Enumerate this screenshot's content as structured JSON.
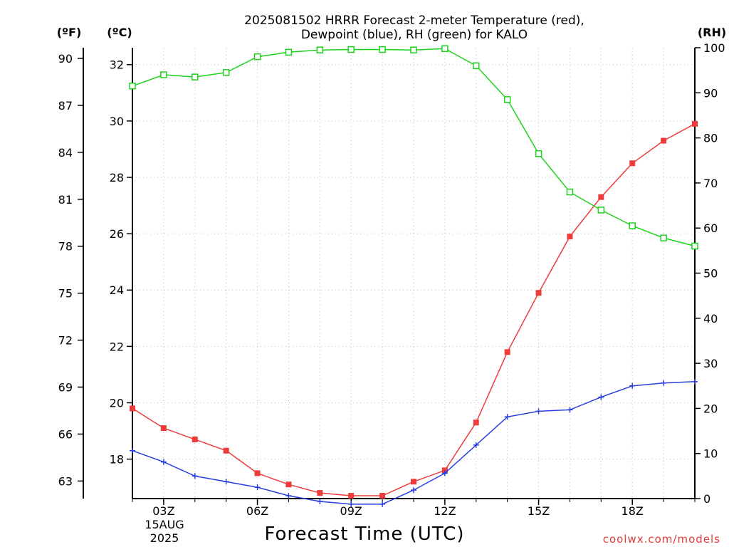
{
  "title_line1": "2025081502 HRRR Forecast 2-meter Temperature (red),",
  "title_line2": "Dewpoint (blue), RH (green) for KALO",
  "credit": "coolwx.com/models",
  "chart_data": {
    "type": "line",
    "xlabel": "Forecast Time (UTC)",
    "x_hours": [
      2,
      3,
      4,
      5,
      6,
      7,
      8,
      9,
      10,
      11,
      12,
      13,
      14,
      15,
      16,
      17,
      18,
      19,
      20
    ],
    "x_range": [
      2,
      20
    ],
    "x_ticks": [
      {
        "hour": 3,
        "label": "03Z"
      },
      {
        "hour": 6,
        "label": "06Z"
      },
      {
        "hour": 9,
        "label": "09Z"
      },
      {
        "hour": 12,
        "label": "12Z"
      },
      {
        "hour": 15,
        "label": "15Z"
      },
      {
        "hour": 18,
        "label": "18Z"
      }
    ],
    "date_label_line1": "15AUG",
    "date_label_line2": "2025",
    "axes": {
      "fahrenheit": {
        "unit": "(ºF)",
        "ticks": [
          63,
          66,
          69,
          72,
          75,
          78,
          81,
          84,
          87,
          90
        ]
      },
      "celsius": {
        "unit": "(ºC)",
        "ticks": [
          18,
          20,
          22,
          24,
          26,
          28,
          30,
          32
        ],
        "range": [
          16.6,
          32.6
        ]
      },
      "rh": {
        "unit": "(RH)",
        "ticks": [
          0,
          10,
          20,
          30,
          40,
          50,
          60,
          70,
          80,
          90,
          100
        ],
        "range": [
          0,
          100
        ]
      }
    },
    "grid": true,
    "series": [
      {
        "key": "temperature",
        "axis": "celsius",
        "color": "#ee3b3b",
        "marker": "filled-square",
        "values": [
          19.8,
          19.1,
          18.7,
          18.3,
          17.5,
          17.1,
          16.8,
          16.7,
          16.7,
          17.2,
          17.6,
          19.3,
          21.8,
          23.9,
          25.9,
          27.3,
          28.5,
          29.3,
          29.9
        ]
      },
      {
        "key": "dewpoint",
        "axis": "celsius",
        "color": "#2a3fe0",
        "marker": "plus",
        "values": [
          18.3,
          17.9,
          17.4,
          17.2,
          17.0,
          16.7,
          16.5,
          16.4,
          16.4,
          16.9,
          17.5,
          18.5,
          19.5,
          19.7,
          19.75,
          20.2,
          20.6,
          20.7,
          20.75
        ]
      },
      {
        "key": "rh",
        "axis": "rh",
        "color": "#1ed21e",
        "marker": "open-square",
        "values": [
          91.5,
          94.0,
          93.5,
          94.5,
          98.0,
          99.0,
          99.5,
          99.6,
          99.6,
          99.5,
          99.8,
          96.0,
          88.5,
          76.5,
          68.0,
          64.0,
          60.5,
          57.8,
          56.0
        ]
      }
    ]
  }
}
